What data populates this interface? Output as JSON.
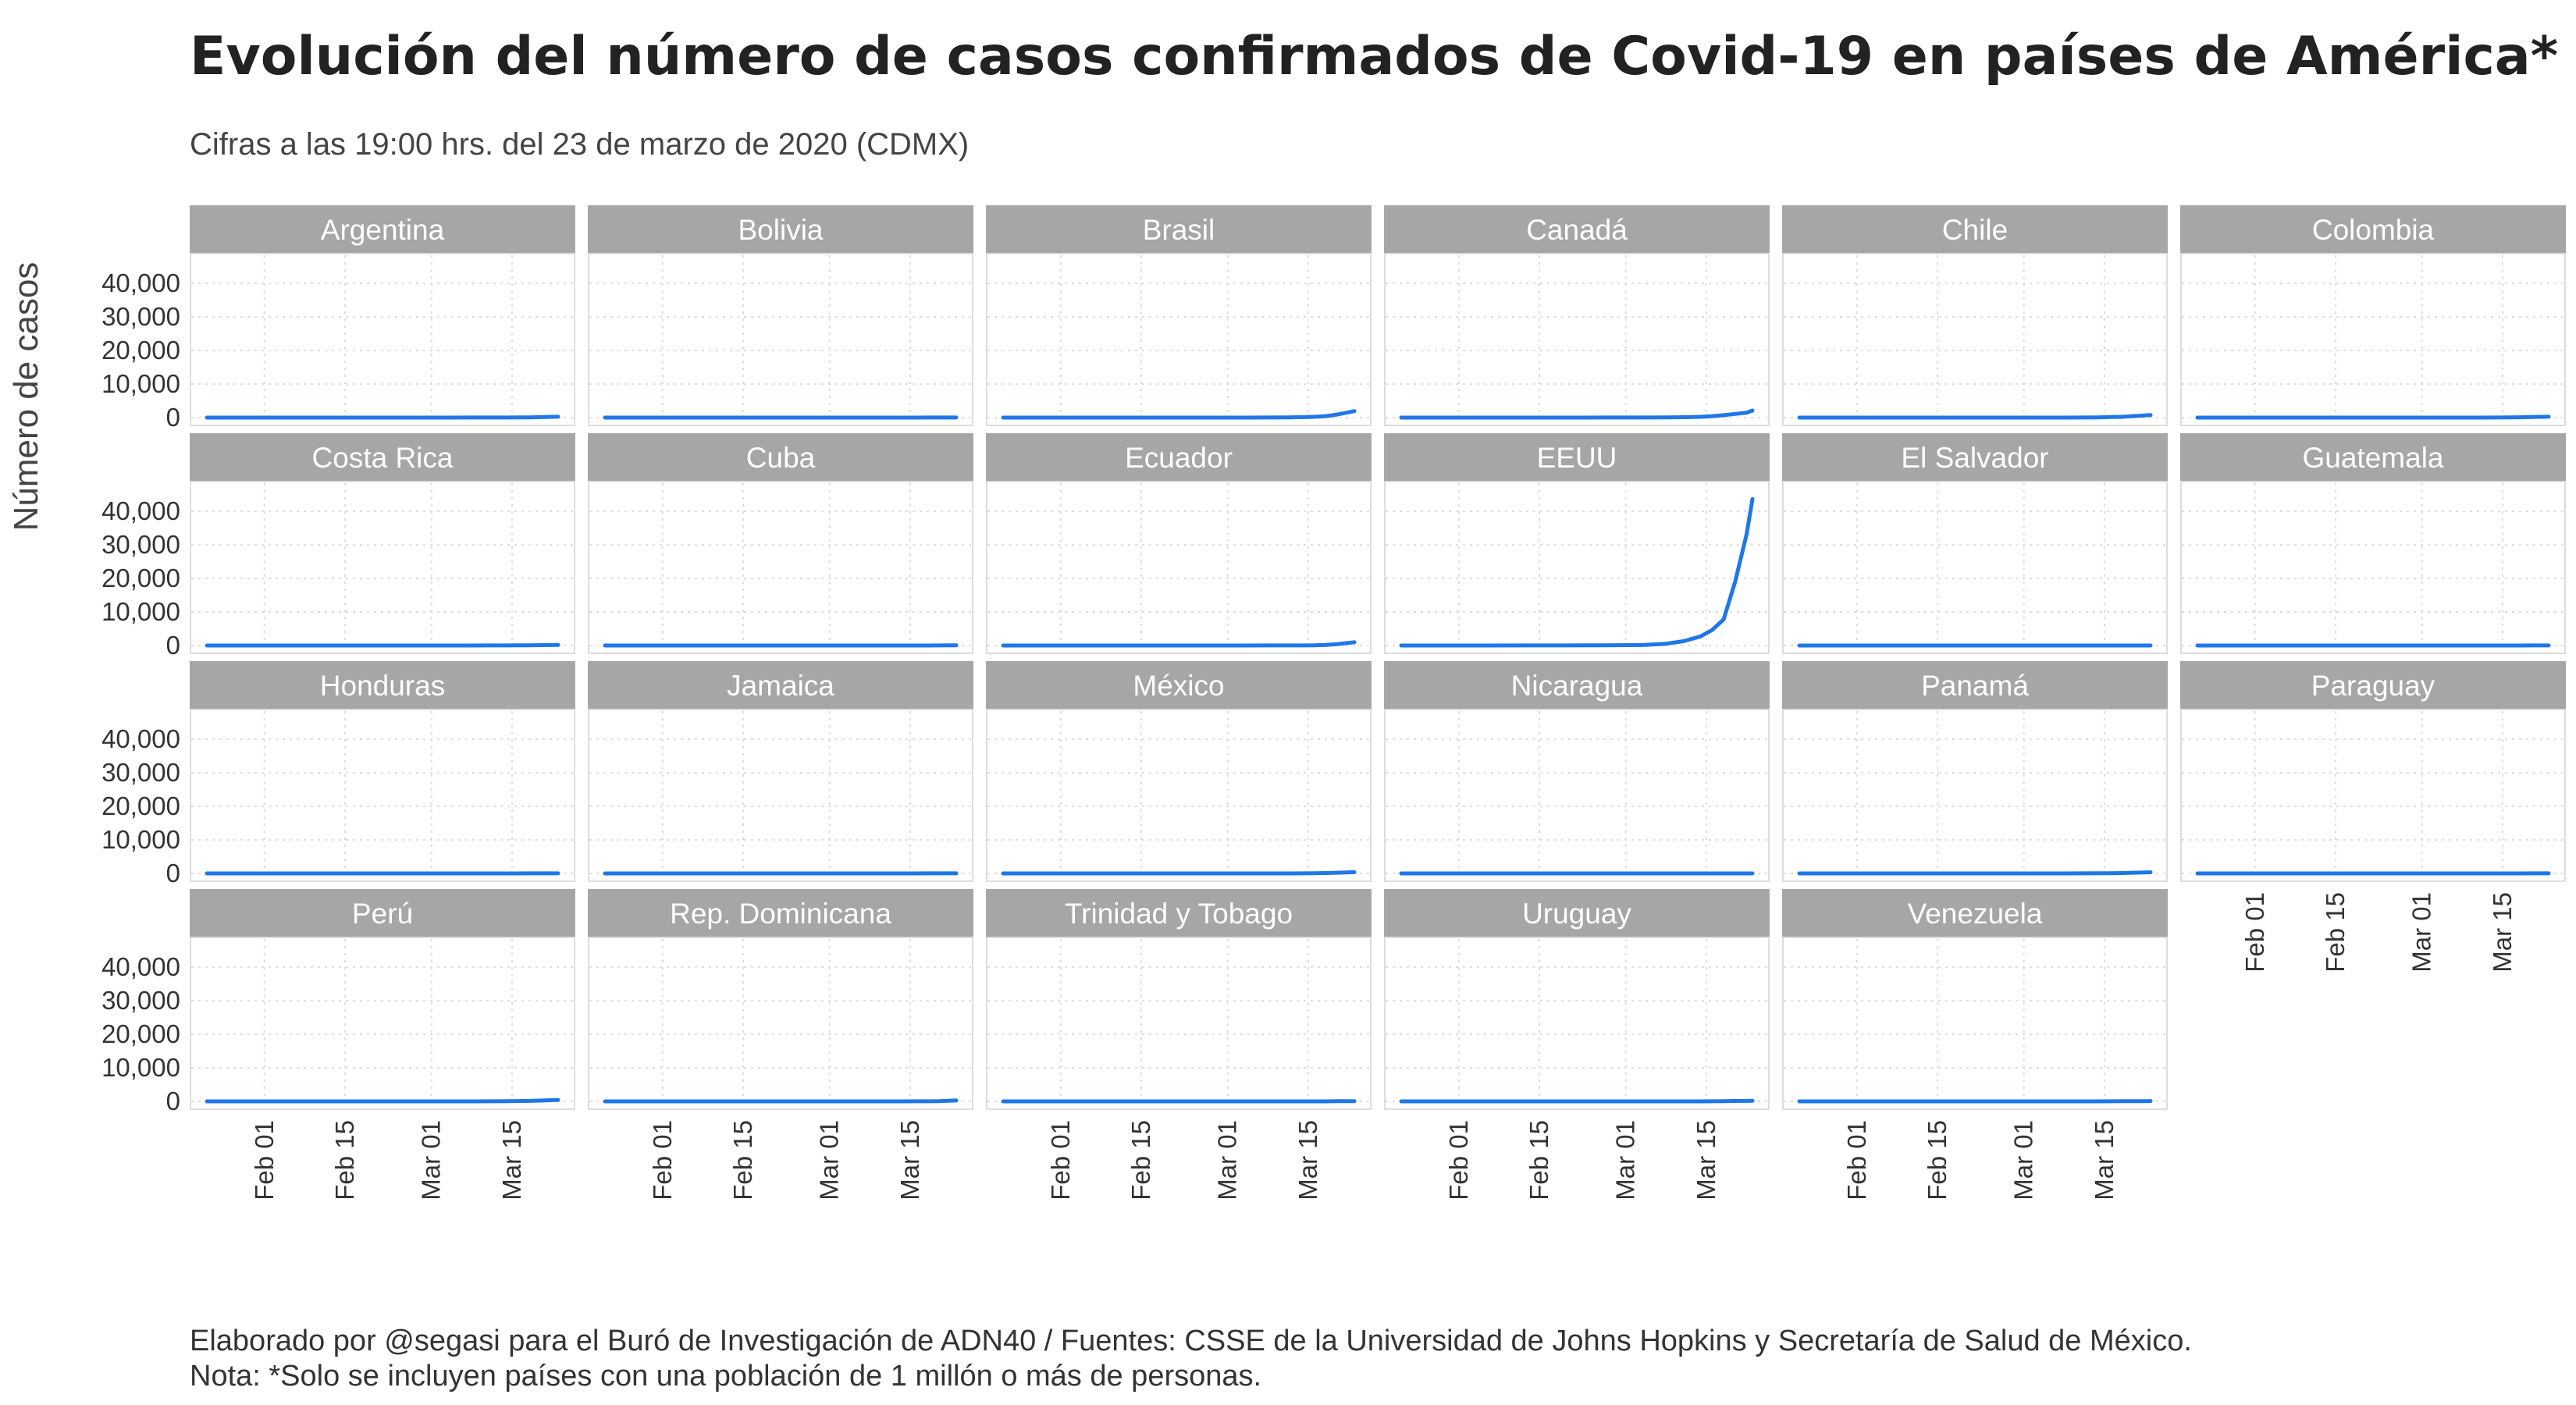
{
  "title": "Evolución del número de casos confirmados de Covid-19 en países de América*",
  "subtitle": "Cifras a las 19:00 hrs. del 23 de marzo de 2020 (CDMX)",
  "caption_lines": [
    "Elaborado por @segasi para el Buró de Investigación de ADN40 / Fuentes: CSSE de la Universidad de Johns Hopkins y Secretaría de Salud de México.",
    "Nota: *Solo se incluyen países con una población de 1 millón o más de personas."
  ],
  "colors": {
    "line": "#1f77e8",
    "strip": "#a6a6a6",
    "panel_border": "#dddddd",
    "grid": "#dddddd"
  },
  "chart_data": {
    "type": "line",
    "ylabel": "Número de casos",
    "xlabel": "",
    "x_dates": [
      "2020-01-22",
      "2020-01-29",
      "2020-02-05",
      "2020-02-12",
      "2020-02-19",
      "2020-02-26",
      "2020-03-04",
      "2020-03-08",
      "2020-03-11",
      "2020-03-14",
      "2020-03-16",
      "2020-03-18",
      "2020-03-20",
      "2020-03-22",
      "2020-03-23"
    ],
    "xlim": [
      "2020-01-22",
      "2020-03-23"
    ],
    "x_ticks": [
      {
        "date": "2020-02-01",
        "label": "Feb 01"
      },
      {
        "date": "2020-02-15",
        "label": "Feb 15"
      },
      {
        "date": "2020-03-01",
        "label": "Mar 01"
      },
      {
        "date": "2020-03-15",
        "label": "Mar 15"
      }
    ],
    "ylim": [
      0,
      47000
    ],
    "y_ticks": [
      0,
      10000,
      20000,
      30000,
      40000
    ],
    "y_tick_labels": [
      "0",
      "10,000",
      "20,000",
      "30,000",
      "40,000"
    ],
    "grid": true,
    "series": [
      {
        "name": "Argentina",
        "values": [
          0,
          0,
          0,
          0,
          0,
          0,
          1,
          12,
          19,
          34,
          56,
          79,
          128,
          225,
          266
        ]
      },
      {
        "name": "Bolivia",
        "values": [
          0,
          0,
          0,
          0,
          0,
          0,
          0,
          0,
          3,
          10,
          11,
          12,
          19,
          27,
          28
        ]
      },
      {
        "name": "Brasil",
        "values": [
          0,
          0,
          0,
          0,
          0,
          1,
          4,
          25,
          52,
          151,
          234,
          428,
          904,
          1593,
          1924
        ]
      },
      {
        "name": "Canadá",
        "values": [
          0,
          3,
          5,
          7,
          8,
          12,
          33,
          64,
          108,
          244,
          415,
          727,
          1087,
          1468,
          2088
        ]
      },
      {
        "name": "Chile",
        "values": [
          0,
          0,
          0,
          0,
          0,
          0,
          1,
          8,
          23,
          61,
          156,
          238,
          434,
          632,
          746
        ]
      },
      {
        "name": "Colombia",
        "values": [
          0,
          0,
          0,
          0,
          0,
          0,
          0,
          1,
          9,
          24,
          54,
          102,
          158,
          231,
          277
        ]
      },
      {
        "name": "Costa Rica",
        "values": [
          0,
          0,
          0,
          0,
          0,
          0,
          0,
          5,
          22,
          27,
          41,
          69,
          113,
          134,
          158
        ]
      },
      {
        "name": "Cuba",
        "values": [
          0,
          0,
          0,
          0,
          0,
          0,
          0,
          0,
          3,
          4,
          5,
          11,
          21,
          35,
          40
        ]
      },
      {
        "name": "Ecuador",
        "values": [
          0,
          0,
          0,
          0,
          0,
          0,
          10,
          15,
          17,
          28,
          58,
          168,
          426,
          789,
          981
        ]
      },
      {
        "name": "EEUU",
        "values": [
          1,
          5,
          11,
          13,
          15,
          59,
          149,
          533,
          1281,
          2727,
          4632,
          7786,
          19100,
          33272,
          43667
        ]
      },
      {
        "name": "El Salvador",
        "values": [
          0,
          0,
          0,
          0,
          0,
          0,
          0,
          0,
          0,
          0,
          0,
          1,
          3,
          5,
          3
        ]
      },
      {
        "name": "Guatemala",
        "values": [
          0,
          0,
          0,
          0,
          0,
          0,
          0,
          0,
          0,
          1,
          6,
          6,
          12,
          17,
          19
        ]
      },
      {
        "name": "Honduras",
        "values": [
          0,
          0,
          0,
          0,
          0,
          0,
          0,
          0,
          2,
          3,
          8,
          12,
          24,
          26,
          30
        ]
      },
      {
        "name": "Jamaica",
        "values": [
          0,
          0,
          0,
          0,
          0,
          0,
          0,
          0,
          2,
          8,
          10,
          15,
          16,
          19,
          19
        ]
      },
      {
        "name": "México",
        "values": [
          0,
          0,
          0,
          0,
          0,
          2,
          5,
          7,
          8,
          26,
          53,
          118,
          203,
          316,
          367
        ]
      },
      {
        "name": "Nicaragua",
        "values": [
          0,
          0,
          0,
          0,
          0,
          0,
          0,
          0,
          0,
          0,
          0,
          1,
          1,
          2,
          2
        ]
      },
      {
        "name": "Panamá",
        "values": [
          0,
          0,
          0,
          0,
          0,
          0,
          0,
          1,
          14,
          43,
          69,
          109,
          200,
          313,
          345
        ]
      },
      {
        "name": "Paraguay",
        "values": [
          0,
          0,
          0,
          0,
          0,
          0,
          0,
          1,
          5,
          6,
          9,
          11,
          18,
          22,
          27
        ]
      },
      {
        "name": "Perú",
        "values": [
          0,
          0,
          0,
          0,
          0,
          0,
          0,
          6,
          17,
          38,
          86,
          145,
          234,
          363,
          395
        ]
      },
      {
        "name": "Rep. Dominicana",
        "values": [
          0,
          0,
          0,
          0,
          0,
          0,
          1,
          5,
          5,
          11,
          21,
          34,
          72,
          202,
          245
        ]
      },
      {
        "name": "Trinidad y Tobago",
        "values": [
          0,
          0,
          0,
          0,
          0,
          0,
          0,
          0,
          1,
          2,
          5,
          9,
          49,
          50,
          51
        ]
      },
      {
        "name": "Uruguay",
        "values": [
          0,
          0,
          0,
          0,
          0,
          0,
          0,
          0,
          0,
          4,
          29,
          79,
          110,
          135,
          158
        ]
      },
      {
        "name": "Venezuela",
        "values": [
          0,
          0,
          0,
          0,
          0,
          0,
          0,
          0,
          0,
          10,
          17,
          36,
          42,
          77,
          84
        ]
      }
    ]
  }
}
